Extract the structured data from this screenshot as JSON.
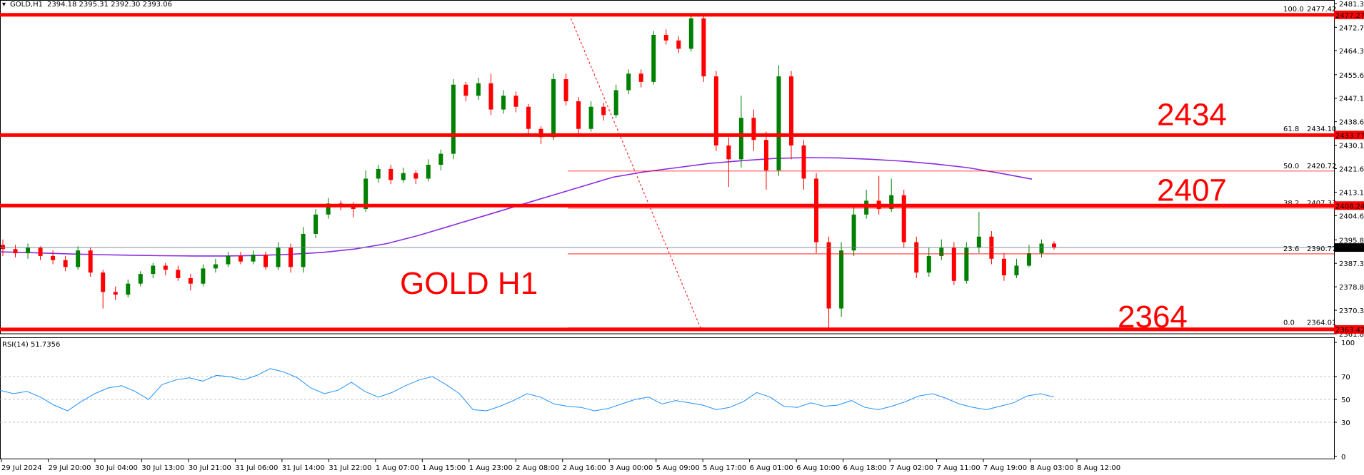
{
  "window": {
    "symbol_header": "GOLD,H1",
    "ohlc": "2394.18 2395.31 2392.30 2393.06",
    "rsi_header": "RSI(14) 51.7356"
  },
  "chart_data": {
    "type": "candlestick",
    "title": "GOLD H1",
    "price_ticks": [
      "2481.35",
      "2472.75",
      "2464.35",
      "2455.60",
      "2447.10",
      "2438.60",
      "2430.10",
      "2421.60",
      "2413.10",
      "2404.60",
      "2395.85",
      "2387.35",
      "2378.85",
      "2370.35",
      "2361.85"
    ],
    "ylim": [
      2361.85,
      2481.35
    ],
    "rsi_ticks": [
      "100",
      "70",
      "50",
      "30",
      "0"
    ],
    "rsi_value": 51.7356,
    "x_labels": [
      "29 Jul 2024",
      "29 Jul 20:00",
      "30 Jul 04:00",
      "30 Jul 13:00",
      "30 Jul 21:00",
      "31 Jul 06:00",
      "31 Jul 14:00",
      "31 Jul 22:00",
      "1 Aug 07:00",
      "1 Aug 15:00",
      "1 Aug 23:00",
      "2 Aug 08:00",
      "2 Aug 16:00",
      "3 Aug 00:00",
      "5 Aug 09:00",
      "5 Aug 17:00",
      "6 Aug 01:00",
      "6 Aug 10:00",
      "6 Aug 18:00",
      "7 Aug 02:00",
      "7 Aug 11:00",
      "7 Aug 19:00",
      "8 Aug 03:00",
      "8 Aug 12:00"
    ],
    "horizontal_levels": [
      {
        "label": "2434",
        "price": 2433.77
      },
      {
        "label": "2407",
        "price": 2408.24
      },
      {
        "label": "2364",
        "price": 2363.42
      }
    ],
    "right_tags": [
      {
        "price": 2477.27,
        "text": "2477.27",
        "color": "#ff0000"
      },
      {
        "price": 2433.77,
        "text": "2433.77",
        "color": "#ff0000"
      },
      {
        "price": 2408.24,
        "text": "2408.24",
        "color": "#ff0000"
      },
      {
        "price": 2393.06,
        "text": "2393.06",
        "color": "#000000"
      },
      {
        "price": 2363.42,
        "text": "2363.42",
        "color": "#ff0000"
      }
    ],
    "fibonacci": [
      {
        "ratio": "100.0",
        "price": 2477.42
      },
      {
        "ratio": "61.8",
        "price": 2434.1
      },
      {
        "ratio": "50.0",
        "price": 2420.72
      },
      {
        "ratio": "38.2",
        "price": 2407.33
      },
      {
        "ratio": "23.6",
        "price": 2390.77
      },
      {
        "ratio": "0.0",
        "price": 2364.01
      }
    ],
    "current_price": 2393.06,
    "ma_series": [
      2391.5,
      2391.2,
      2390.8,
      2390.5,
      2390.3,
      2390.1,
      2390.0,
      2390.0,
      2390.2,
      2390.6,
      2391.3,
      2392.5,
      2394.5,
      2397.5,
      2401.0,
      2404.5,
      2408.0,
      2411.5,
      2415.0,
      2418.5,
      2420.5,
      2422.0,
      2423.5,
      2424.5,
      2425.3,
      2425.6,
      2425.5,
      2425.0,
      2424.3,
      2423.3,
      2422.0,
      2420.0,
      2417.8
    ],
    "rsi_series": [
      58,
      55,
      57,
      52,
      45,
      40,
      48,
      55,
      60,
      62,
      57,
      50,
      63,
      67,
      69,
      66,
      71,
      70,
      67,
      71,
      77,
      74,
      69,
      60,
      55,
      58,
      65,
      57,
      52,
      56,
      62,
      67,
      70,
      63,
      55,
      41,
      40,
      44,
      49,
      55,
      52,
      46,
      44,
      43,
      40,
      42,
      46,
      50,
      52,
      46,
      49,
      47,
      45,
      41,
      43,
      48,
      56,
      52,
      44,
      43,
      47,
      44,
      45,
      49,
      43,
      41,
      44,
      48,
      53,
      55,
      51,
      46,
      43,
      41,
      44,
      47,
      53,
      55,
      52
    ],
    "candles": [
      [
        2394.0,
        2392.5,
        2396.0,
        2390.0
      ],
      [
        2392.5,
        2391.0,
        2394.0,
        2389.5
      ],
      [
        2391.0,
        2393.0,
        2394.5,
        2389.0
      ],
      [
        2393.0,
        2390.0,
        2393.5,
        2388.5
      ],
      [
        2390.0,
        2388.5,
        2392.0,
        2387.0
      ],
      [
        2388.5,
        2386.0,
        2390.0,
        2384.5
      ],
      [
        2386.0,
        2392.0,
        2393.5,
        2385.0
      ],
      [
        2392.0,
        2384.0,
        2393.0,
        2382.5
      ],
      [
        2384.0,
        2377.0,
        2385.0,
        2371.0
      ],
      [
        2377.0,
        2376.0,
        2379.0,
        2374.0
      ],
      [
        2376.0,
        2380.0,
        2381.5,
        2375.0
      ],
      [
        2380.0,
        2383.5,
        2384.5,
        2379.0
      ],
      [
        2383.5,
        2386.5,
        2387.5,
        2382.0
      ],
      [
        2386.5,
        2385.0,
        2387.5,
        2383.0
      ],
      [
        2385.0,
        2382.0,
        2386.5,
        2381.0
      ],
      [
        2382.0,
        2380.0,
        2383.5,
        2377.5
      ],
      [
        2380.0,
        2385.5,
        2387.0,
        2379.0
      ],
      [
        2385.5,
        2387.0,
        2389.0,
        2384.0
      ],
      [
        2387.0,
        2390.0,
        2391.5,
        2386.0
      ],
      [
        2390.0,
        2388.0,
        2391.5,
        2387.0
      ],
      [
        2388.0,
        2390.5,
        2392.0,
        2387.0
      ],
      [
        2390.5,
        2386.0,
        2391.5,
        2385.0
      ],
      [
        2386.0,
        2393.0,
        2395.0,
        2385.0
      ],
      [
        2393.0,
        2386.0,
        2394.5,
        2384.0
      ],
      [
        2386.0,
        2398.0,
        2400.5,
        2384.0
      ],
      [
        2398.0,
        2405.0,
        2407.0,
        2396.5
      ],
      [
        2405.0,
        2409.0,
        2411.0,
        2403.5
      ],
      [
        2409.0,
        2408.0,
        2410.0,
        2406.5
      ],
      [
        2408.0,
        2407.0,
        2409.5,
        2404.0
      ],
      [
        2407.0,
        2418.0,
        2421.0,
        2406.0
      ],
      [
        2418.0,
        2421.5,
        2423.0,
        2416.5
      ],
      [
        2421.5,
        2417.5,
        2423.0,
        2416.0
      ],
      [
        2417.5,
        2420.0,
        2422.0,
        2416.5
      ],
      [
        2420.0,
        2418.0,
        2421.0,
        2416.0
      ],
      [
        2418.0,
        2423.0,
        2425.0,
        2417.0
      ],
      [
        2423.0,
        2427.0,
        2428.5,
        2421.0
      ],
      [
        2427.0,
        2452.0,
        2454.0,
        2425.0
      ],
      [
        2452.0,
        2448.0,
        2453.0,
        2446.0
      ],
      [
        2448.0,
        2452.5,
        2454.5,
        2446.5
      ],
      [
        2452.5,
        2443.0,
        2456.0,
        2441.0
      ],
      [
        2443.0,
        2448.0,
        2450.0,
        2441.5
      ],
      [
        2448.0,
        2444.0,
        2449.5,
        2442.0
      ],
      [
        2444.0,
        2436.0,
        2445.0,
        2434.0
      ],
      [
        2436.0,
        2433.0,
        2437.0,
        2430.5
      ],
      [
        2433.0,
        2454.0,
        2456.0,
        2432.0
      ],
      [
        2454.0,
        2446.0,
        2456.0,
        2444.5
      ],
      [
        2446.0,
        2436.0,
        2447.5,
        2433.0
      ],
      [
        2436.0,
        2444.0,
        2446.0,
        2435.0
      ],
      [
        2444.0,
        2441.0,
        2445.5,
        2439.0
      ],
      [
        2441.0,
        2450.0,
        2452.0,
        2440.0
      ],
      [
        2450.0,
        2456.0,
        2457.5,
        2448.5
      ],
      [
        2456.0,
        2453.0,
        2457.5,
        2451.0
      ],
      [
        2453.0,
        2470.0,
        2471.5,
        2452.0
      ],
      [
        2470.0,
        2468.0,
        2472.0,
        2466.5
      ],
      [
        2468.0,
        2465.0,
        2469.5,
        2463.5
      ],
      [
        2465.0,
        2476.0,
        2477.4,
        2464.0
      ],
      [
        2476.0,
        2455.0,
        2477.0,
        2453.0
      ],
      [
        2455.0,
        2430.0,
        2457.0,
        2428.0
      ],
      [
        2430.0,
        2425.0,
        2433.0,
        2415.0
      ],
      [
        2425.0,
        2440.0,
        2448.0,
        2422.0
      ],
      [
        2440.0,
        2432.0,
        2443.0,
        2428.0
      ],
      [
        2432.0,
        2421.0,
        2435.0,
        2414.0
      ],
      [
        2421.0,
        2455.0,
        2459.0,
        2419.0
      ],
      [
        2455.0,
        2430.0,
        2457.0,
        2425.0
      ],
      [
        2430.0,
        2418.0,
        2432.0,
        2414.0
      ],
      [
        2418.0,
        2395.0,
        2420.0,
        2391.0
      ],
      [
        2395.0,
        2371.0,
        2397.0,
        2364.0
      ],
      [
        2371.0,
        2392.0,
        2395.0,
        2368.0
      ],
      [
        2392.0,
        2405.0,
        2408.0,
        2390.0
      ],
      [
        2405.0,
        2410.0,
        2414.0,
        2403.5
      ],
      [
        2410.0,
        2407.0,
        2419.0,
        2405.0
      ],
      [
        2407.0,
        2412.0,
        2418.0,
        2406.0
      ],
      [
        2412.0,
        2395.0,
        2414.0,
        2393.0
      ],
      [
        2395.0,
        2384.0,
        2397.0,
        2382.0
      ],
      [
        2384.0,
        2390.0,
        2393.0,
        2382.5
      ],
      [
        2390.0,
        2393.0,
        2396.0,
        2388.5
      ],
      [
        2393.0,
        2381.0,
        2395.0,
        2379.5
      ],
      [
        2381.0,
        2393.0,
        2395.0,
        2380.0
      ],
      [
        2393.0,
        2397.0,
        2406.0,
        2391.0
      ],
      [
        2397.0,
        2389.0,
        2399.0,
        2387.0
      ],
      [
        2389.0,
        2383.0,
        2391.0,
        2381.0
      ],
      [
        2383.0,
        2386.5,
        2389.0,
        2382.0
      ],
      [
        2386.5,
        2391.0,
        2394.0,
        2386.0
      ],
      [
        2391.0,
        2394.5,
        2396.0,
        2389.5
      ],
      [
        2394.5,
        2393.1,
        2395.3,
        2392.3
      ]
    ]
  }
}
